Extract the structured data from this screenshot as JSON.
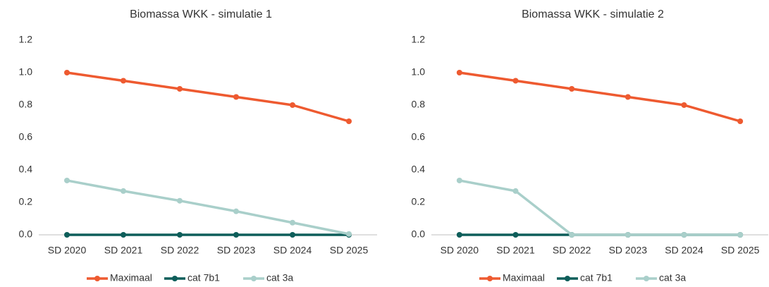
{
  "chart_data": [
    {
      "type": "line",
      "title": "Biomassa WKK - simulatie 1",
      "categories": [
        "SD 2020",
        "SD 2021",
        "SD 2022",
        "SD 2023",
        "SD 2024",
        "SD 2025"
      ],
      "series": [
        {
          "name": "Maximaal",
          "color": "#ee5a30",
          "values": [
            1.0,
            0.95,
            0.9,
            0.85,
            0.8,
            0.7
          ]
        },
        {
          "name": "cat 7b1",
          "color": "#0e5e5a",
          "values": [
            0,
            0,
            0,
            0,
            0,
            0
          ]
        },
        {
          "name": "cat 3a",
          "color": "#a9cfca",
          "values": [
            0.335,
            0.27,
            0.21,
            0.145,
            0.075,
            0.005
          ]
        }
      ],
      "ylim": [
        0,
        1.2
      ],
      "yticks": [
        {
          "value": 0,
          "label": "0.0"
        },
        0.2,
        0.4,
        0.6,
        0.8,
        {
          "value": 1,
          "label": "1.0"
        },
        1.2
      ],
      "grid": false,
      "legend": "bottom"
    },
    {
      "type": "line",
      "title": "Biomassa WKK - simulatie 2",
      "categories": [
        "SD 2020",
        "SD 2021",
        "SD 2022",
        "SD 2023",
        "SD 2024",
        "SD 2025"
      ],
      "series": [
        {
          "name": "Maximaal",
          "color": "#ee5a30",
          "values": [
            1.0,
            0.95,
            0.9,
            0.85,
            0.8,
            0.7
          ]
        },
        {
          "name": "cat 7b1",
          "color": "#0e5e5a",
          "values": [
            0,
            0,
            0,
            0,
            0,
            0
          ]
        },
        {
          "name": "cat 3a",
          "color": "#a9cfca",
          "values": [
            0.335,
            0.27,
            0,
            0,
            0,
            0
          ]
        }
      ],
      "ylim": [
        0,
        1.2
      ],
      "yticks": [
        {
          "value": 0,
          "label": "0.0"
        },
        0.2,
        0.4,
        0.6,
        0.8,
        {
          "value": 1,
          "label": "1.0"
        },
        1.2
      ],
      "grid": false,
      "legend": "bottom"
    }
  ]
}
